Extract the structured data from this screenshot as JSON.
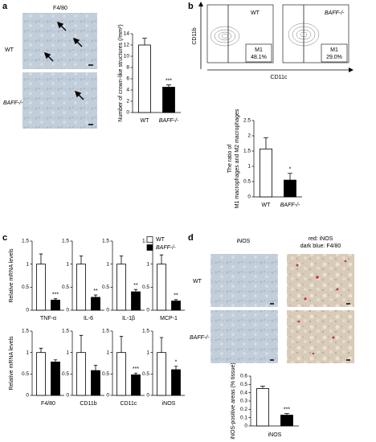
{
  "panel_labels": [
    "a",
    "b",
    "c",
    "d"
  ],
  "micrographs": {
    "a_title": "F4/80",
    "a_rows": [
      "WT",
      "BAFF-/-"
    ],
    "d_titles": [
      "iNOS",
      "red: iNOS",
      "dark blue: F4/80"
    ],
    "d_rows": [
      "WT",
      "BAFF-/-"
    ]
  },
  "flow": {
    "ylabel": "CD11b",
    "xlabel": "CD11c",
    "plots": [
      {
        "name": "WT",
        "gate": "M1",
        "percent": "48.1%"
      },
      {
        "name": "BAFF-/-",
        "gate": "M1",
        "percent": "29.0%"
      }
    ]
  },
  "chart_data": [
    {
      "type": "bar",
      "ylabel": "Number of crown-like structures (/mm²)",
      "categories": [
        "WT",
        "BAFF-/-"
      ],
      "values": [
        12,
        4.5
      ],
      "errors": [
        1.2,
        0.4
      ],
      "colors": [
        "#ffffff",
        "#000000"
      ],
      "significance": [
        null,
        "***"
      ],
      "ylim": [
        0,
        14
      ],
      "yticks": [
        0,
        2,
        4,
        6,
        8,
        10,
        12,
        14
      ]
    },
    {
      "type": "bar",
      "ylabel": [
        "The ratio of",
        "M1 macrophages and M2 macrophages"
      ],
      "categories": [
        "WT",
        "BAFF-/-"
      ],
      "values": [
        1.57,
        0.55
      ],
      "errors": [
        0.37,
        0.22
      ],
      "colors": [
        "#ffffff",
        "#000000"
      ],
      "significance": [
        null,
        "*"
      ],
      "ylim": [
        0,
        2.5
      ],
      "yticks": [
        0,
        0.5,
        1,
        1.5,
        2,
        2.5
      ]
    },
    {
      "type": "grouped_bar",
      "ylabel": "Relative mRNA levels",
      "categories": [
        "TNF-α",
        "IL-6",
        "IL-1β",
        "MCP-1",
        "F4/80",
        "CD11b",
        "CD11c",
        "iNOS"
      ],
      "series": [
        {
          "name": "WT",
          "color": "#ffffff",
          "values": [
            1,
            1,
            1,
            1,
            1,
            1,
            1,
            1
          ],
          "errors": [
            0.22,
            0.18,
            0.18,
            0.2,
            0.1,
            0.4,
            0.38,
            0.35
          ]
        },
        {
          "name": "BAFF-/-",
          "color": "#000000",
          "values": [
            0.22,
            0.28,
            0.4,
            0.2,
            0.78,
            0.58,
            0.48,
            0.6
          ],
          "errors": [
            0.03,
            0.05,
            0.05,
            0.03,
            0.05,
            0.12,
            0.04,
            0.08
          ],
          "significance": [
            "***",
            "**",
            "**",
            "**",
            null,
            null,
            "***",
            "*"
          ]
        }
      ],
      "ylim": [
        0,
        1.5
      ],
      "yticks": [
        0,
        0.5,
        1,
        1.5
      ]
    },
    {
      "type": "bar",
      "ylabel": "iNOS-positive areas (% tissue)",
      "xlabel": "iNOS",
      "values": [
        0.45,
        0.13
      ],
      "errors": [
        0.03,
        0.02
      ],
      "colors": [
        "#ffffff",
        "#000000"
      ],
      "significance": [
        null,
        "***"
      ],
      "ylim": [
        0,
        0.6
      ],
      "yticks": [
        0,
        0.1,
        0.2,
        0.3,
        0.4,
        0.5,
        0.6
      ]
    }
  ]
}
